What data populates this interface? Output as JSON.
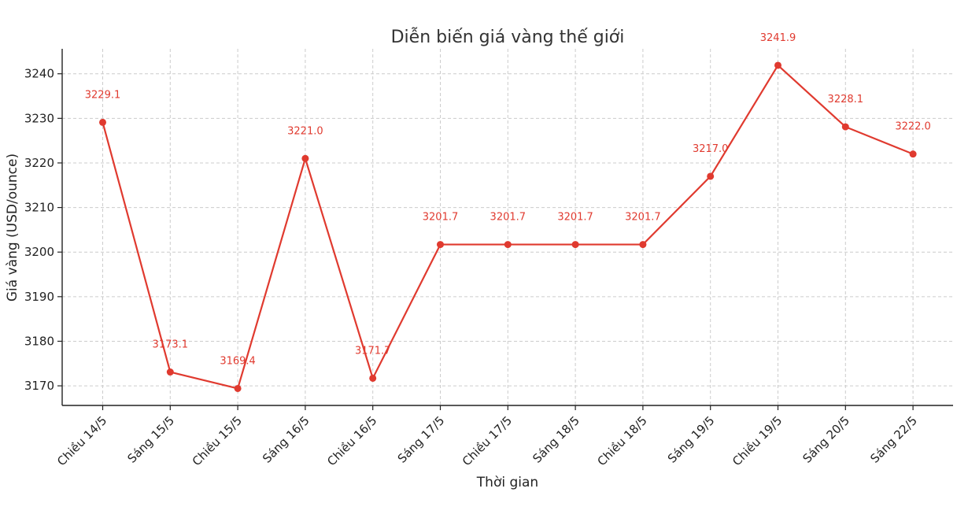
{
  "chart_data": {
    "type": "line",
    "title": "Diễn biến giá vàng thế giới",
    "xlabel": "Thời gian",
    "ylabel": "Giá vàng (USD/ounce)",
    "categories": [
      "Chiều 14/5",
      "Sáng 15/5",
      "Chiều 15/5",
      "Sáng 16/5",
      "Chiều 16/5",
      "Sáng 17/5",
      "Chiều 17/5",
      "Sáng 18/5",
      "Chiều 18/5",
      "Sáng 19/5",
      "Chiều 19/5",
      "Sáng 20/5",
      "Sáng 22/5"
    ],
    "series": [
      {
        "values": [
          3229.1,
          3173.1,
          3169.4,
          3221.0,
          3171.7,
          3201.7,
          3201.7,
          3201.7,
          3201.7,
          3217.0,
          3241.9,
          3228.1,
          3222.0
        ],
        "labels": [
          "3229.1",
          "3173.1",
          "3169.4",
          "3221.0",
          "3171.7",
          "3201.7",
          "3201.7",
          "3201.7",
          "3201.7",
          "3217.0",
          "3241.9",
          "3228.1",
          "3222.0"
        ],
        "color": "#e03a2f"
      }
    ],
    "yticks": [
      3170,
      3180,
      3190,
      3200,
      3210,
      3220,
      3230,
      3240
    ],
    "ylim": [
      3165.6,
      3245.6
    ],
    "grid": true,
    "legend": "none"
  }
}
